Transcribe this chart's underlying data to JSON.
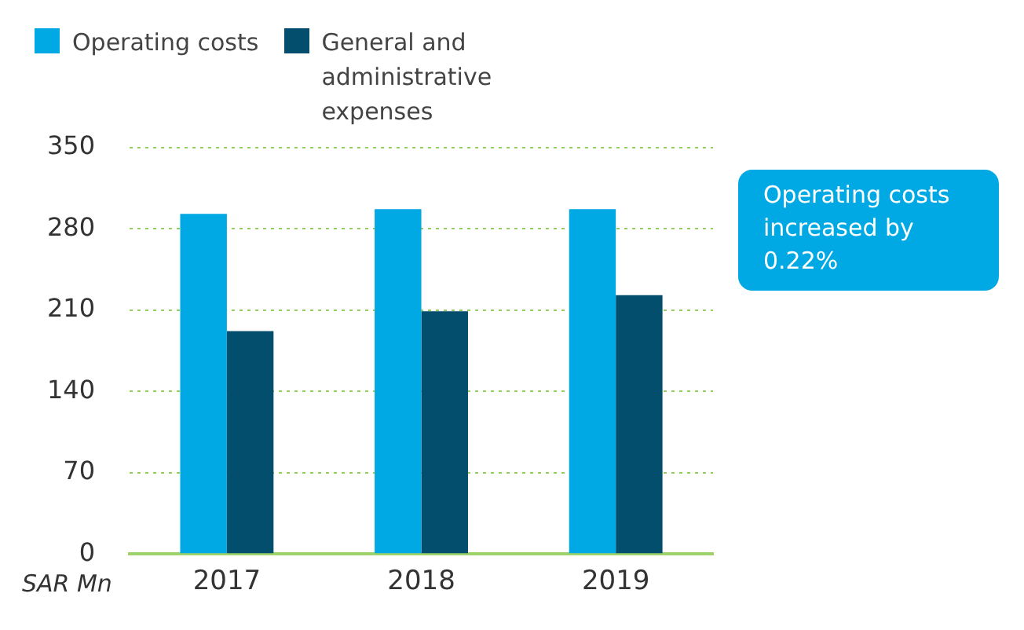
{
  "chart_data": {
    "type": "bar",
    "ylabel": "SAR Mn",
    "categories": [
      "2017",
      "2018",
      "2019"
    ],
    "series": [
      {
        "name": "Operating costs",
        "color": "#00a8e4",
        "values": [
          293,
          297,
          297
        ]
      },
      {
        "name": "General and administrative expenses",
        "color": "#034d6d",
        "values": [
          192,
          209,
          223
        ]
      }
    ],
    "ylim": [
      0,
      350
    ],
    "yticks": [
      0,
      70,
      140,
      210,
      280,
      350
    ],
    "grid": "y",
    "legend": "top left",
    "annotations": [
      "Operating costs increased by 0.22%"
    ]
  }
}
